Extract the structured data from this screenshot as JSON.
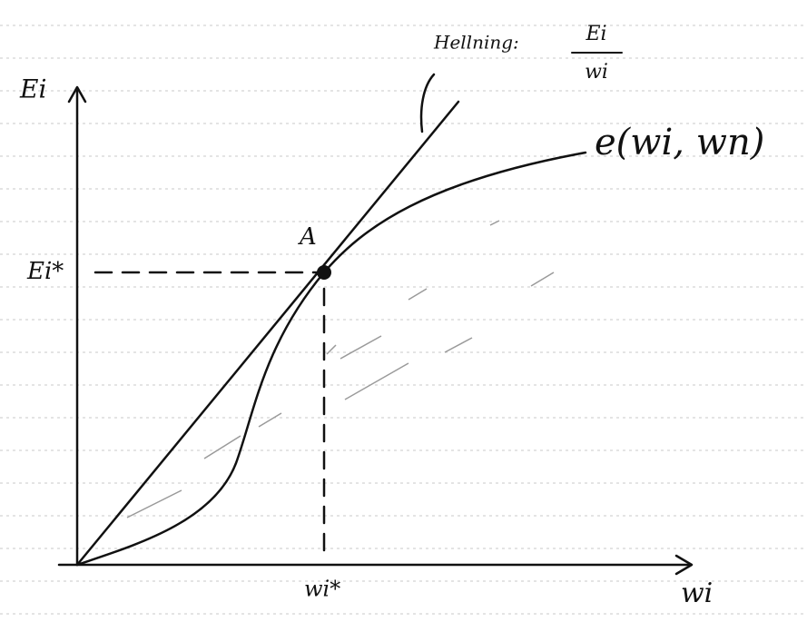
{
  "y_axis_label": "Ei",
  "x_axis_label": "wi",
  "y_marker_label": "Ei*",
  "x_marker_label": "wi*",
  "point_label": "A",
  "slope_annotation": {
    "prefix": "Hellning:",
    "numerator": "Ei",
    "denominator": "wi"
  },
  "curve_label": "e(wi, wn)"
}
